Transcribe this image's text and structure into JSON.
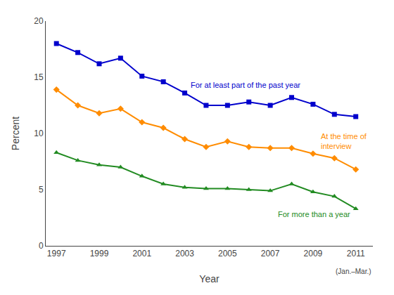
{
  "chart_data": {
    "type": "line",
    "x": [
      1997,
      1998,
      1999,
      2000,
      2001,
      2002,
      2003,
      2004,
      2005,
      2006,
      2007,
      2008,
      2009,
      2010,
      2011
    ],
    "series": [
      {
        "name": "For at least part of the past year",
        "color": "#0000cc",
        "marker": "square",
        "values": [
          18.0,
          17.2,
          16.2,
          16.7,
          15.1,
          14.6,
          13.6,
          12.5,
          12.5,
          12.8,
          12.5,
          13.2,
          12.6,
          11.7,
          11.5
        ]
      },
      {
        "name": "At the time of\ninterview",
        "color": "#ff8c00",
        "marker": "diamond",
        "values": [
          13.9,
          12.5,
          11.8,
          12.2,
          11.0,
          10.5,
          9.5,
          8.8,
          9.3,
          8.8,
          8.7,
          8.7,
          8.2,
          7.8,
          6.8
        ]
      },
      {
        "name": "For more than a year",
        "color": "#228B22",
        "marker": "triangle-up",
        "values": [
          8.3,
          7.6,
          7.2,
          7.0,
          6.2,
          5.5,
          5.2,
          5.1,
          5.1,
          5.0,
          4.9,
          5.5,
          4.8,
          4.4,
          3.3
        ]
      }
    ],
    "xlabel": "Year",
    "ylabel": "Percent",
    "annotations": [
      "(Jan.–Mar.)"
    ],
    "xlim": [
      1996.5,
      2011.8
    ],
    "xticks": [
      1997,
      1999,
      2001,
      2003,
      2005,
      2007,
      2009,
      2011
    ],
    "ylim": [
      0,
      20
    ],
    "yticks": [
      0,
      5,
      10,
      15,
      20
    ],
    "grid": false
  }
}
